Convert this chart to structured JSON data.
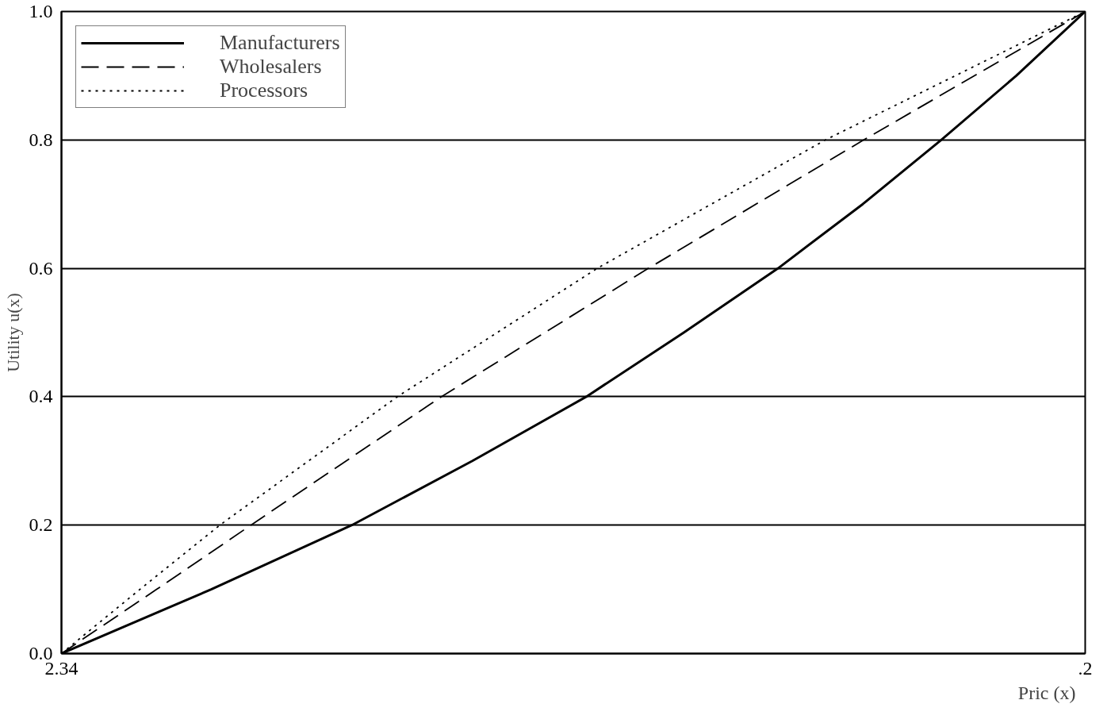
{
  "chart_data": {
    "type": "line",
    "xlabel": "Pric   (x)",
    "ylabel": "Utility u(x)",
    "xlim": [
      2.34,
      0.2
    ],
    "xticks": [
      2.34,
      {
        "value": 0.2,
        "label": ".2"
      }
    ],
    "ylim": [
      0,
      1
    ],
    "yticks": [
      {
        "value": 0,
        "label": "0.0"
      },
      {
        "value": 0.2,
        "label": "0.2"
      },
      {
        "value": 0.4,
        "label": "0.4"
      },
      {
        "value": 0.6,
        "label": "0.6"
      },
      {
        "value": 0.8,
        "label": "0.8"
      },
      {
        "value": 1,
        "label": "1.0"
      }
    ],
    "grid": "y",
    "legend": "top left",
    "marker": "none",
    "series": [
      {
        "name": "Manufacturers",
        "color": "#000000",
        "line_style": "solid",
        "x": [
          2.34,
          2.027,
          1.733,
          1.481,
          1.243,
          1.039,
          0.842,
          0.665,
          0.501,
          0.344,
          0.2
        ],
        "values": [
          0,
          0.1,
          0.2,
          0.3,
          0.4,
          0.5,
          0.6,
          0.7,
          0.8,
          0.9,
          1.0
        ]
      },
      {
        "name": "Wholesalers",
        "color": "#000000",
        "line_style": "dashed",
        "x": [
          2.34,
          2.141,
          1.944,
          1.546,
          1.113,
          0.663,
          0.2
        ],
        "values": [
          0,
          0.1,
          0.2,
          0.4,
          0.6,
          0.8,
          1.0
        ]
      },
      {
        "name": "Processors",
        "color": "#000000",
        "line_style": "dotted",
        "x": [
          2.34,
          2.176,
          2.009,
          1.638,
          1.22,
          0.743,
          0.2
        ],
        "values": [
          0,
          0.1,
          0.2,
          0.4,
          0.6,
          0.8,
          1.0
        ]
      }
    ]
  }
}
